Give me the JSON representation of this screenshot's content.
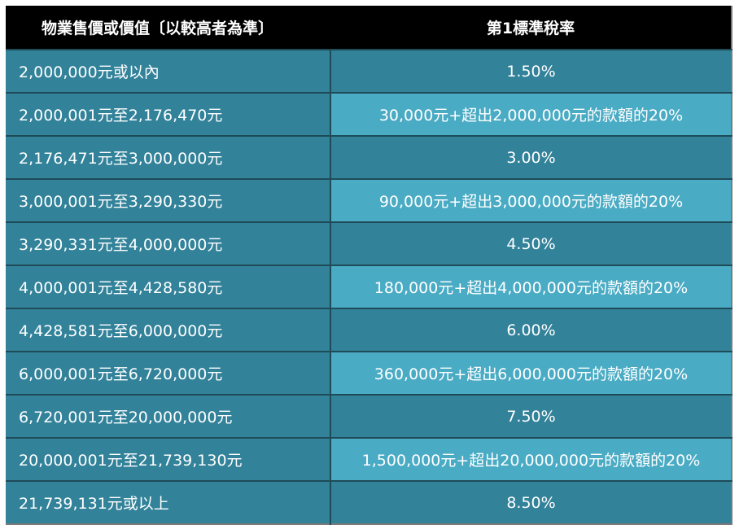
{
  "table": {
    "headers": [
      "物業售價或價值〔以較高者為準〕",
      "第1標準稅率"
    ],
    "rows": [
      [
        "2,000,000元或以內",
        "1.50%"
      ],
      [
        "2,000,001元至2,176,470元",
        "30,000元+超出2,000,000元的款額的20%"
      ],
      [
        "2,176,471元至3,000,000元",
        "3.00%"
      ],
      [
        "3,000,001元至3,290,330元",
        "90,000元+超出3,000,000元的款額的20%"
      ],
      [
        "3,290,331元至4,000,000元",
        "4.50%"
      ],
      [
        "4,000,001元至4,428,580元",
        "180,000元+超出4,000,000元的款額的20%"
      ],
      [
        "4,428,581元至6,000,000元",
        "6.00%"
      ],
      [
        "6,000,001元至6,720,000元",
        "360,000元+超出6,000,000元的款額的20%"
      ],
      [
        "6,720,001元至20,000,000元",
        "7.50%"
      ],
      [
        "20,000,001元至21,739,130元",
        "1,500,000元+超出20,000,000元的款額的20%"
      ],
      [
        "21,739,131元或以上",
        "8.50%"
      ]
    ]
  },
  "colors": {
    "header_bg": "#000000",
    "row_bg": "#32829a",
    "alt_cell_bg": "#4aabc4",
    "text": "#ffffff"
  }
}
